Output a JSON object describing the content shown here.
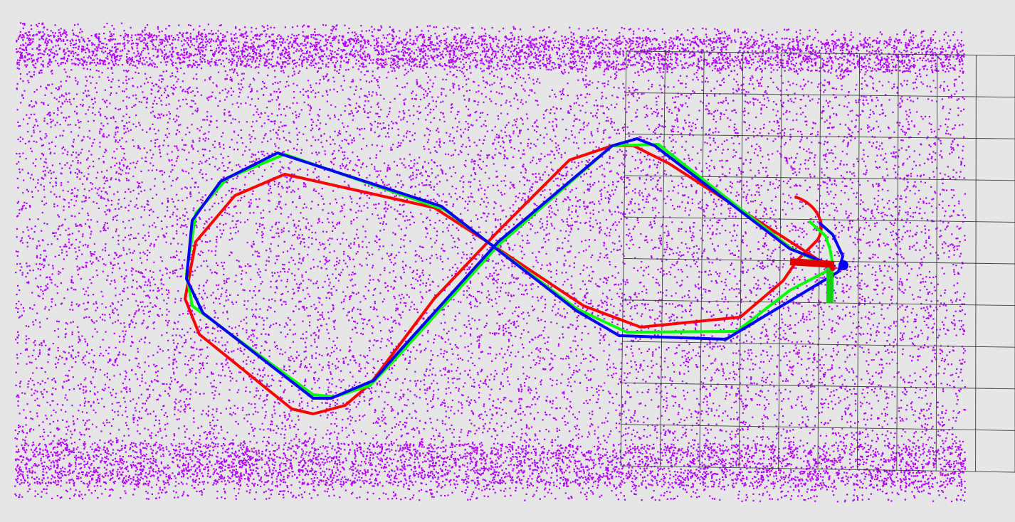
{
  "scene": {
    "background_color": "#e6e6e6",
    "point_cloud": {
      "color": "#b400ff"
    },
    "grid": {
      "color": "#3c3c3c"
    },
    "trajectories": [
      {
        "color": "#ff0000"
      },
      {
        "color": "#00ff00"
      },
      {
        "color": "#0000ff"
      }
    ],
    "pose_axes": {
      "x_color": "#e00000",
      "y_color": "#10d010",
      "z_color": "#0000ff"
    }
  }
}
